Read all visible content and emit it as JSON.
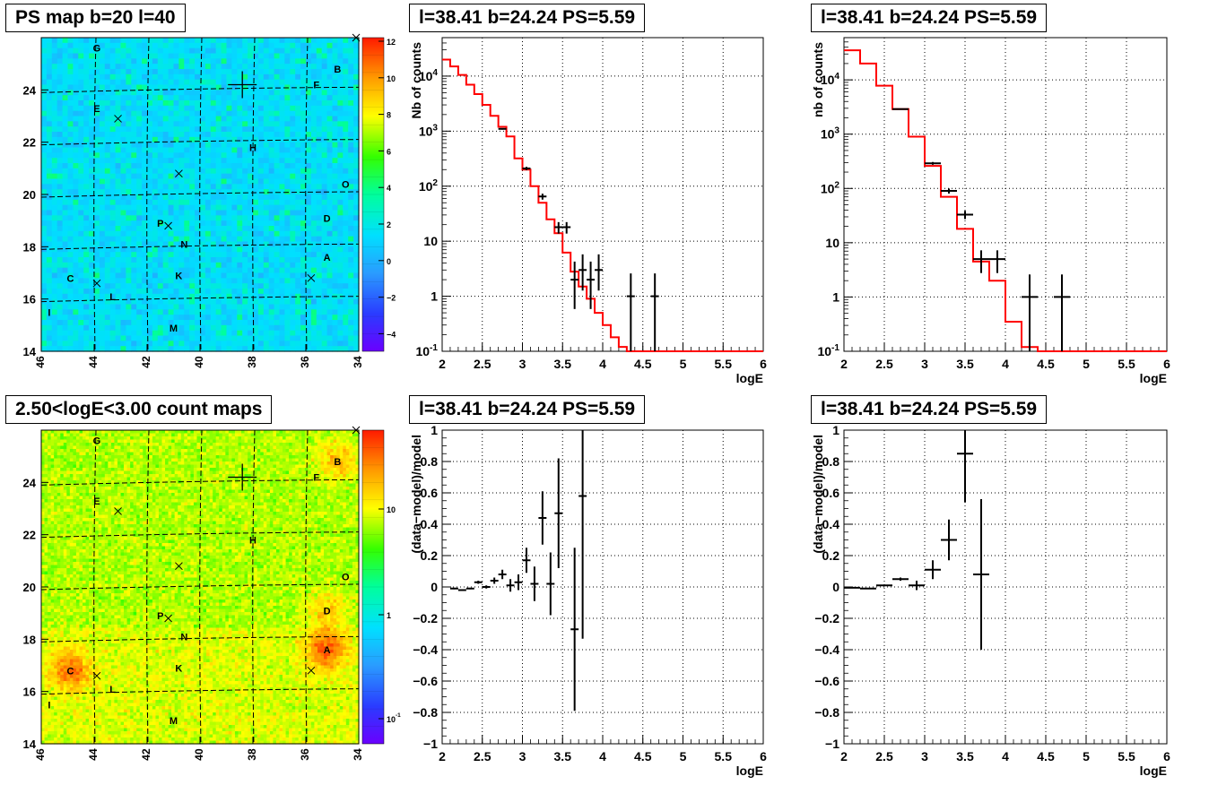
{
  "panels": {
    "tl_title": "PS map b=20 l=40",
    "tr1_title": "l=38.41 b=24.24 PS=5.59",
    "tr2_title": "l=38.41 b=24.24 PS=5.59",
    "bl_title": "2.50<logE<3.00 count maps",
    "br1_title": "l=38.41 b=24.24 PS=5.59",
    "br2_title": "l=38.41 b=24.24 PS=5.59"
  },
  "colors": {
    "model_line": "#ff0000",
    "data": "#000000",
    "grid": "#000000"
  },
  "chart_data": [
    {
      "type": "heatmap",
      "title": "PS map b=20 l=40",
      "x_ticks": [
        "46",
        "44",
        "42",
        "40",
        "38",
        "36",
        "34"
      ],
      "y_ticks": [
        "14",
        "16",
        "18",
        "20",
        "22",
        "24"
      ],
      "colorbar_ticks": [
        "12",
        "10",
        "8",
        "6",
        "4",
        "2",
        "0",
        "-2",
        "-4"
      ],
      "sources": [
        {
          "label": "G",
          "l": 43.9,
          "b": 25.6
        },
        {
          "label": "B",
          "l": 34.8,
          "b": 24.8
        },
        {
          "label": "F",
          "l": 35.6,
          "b": 24.2
        },
        {
          "label": "E",
          "l": 43.9,
          "b": 23.3
        },
        {
          "label": "H",
          "l": 38.0,
          "b": 21.8
        },
        {
          "label": "O",
          "l": 34.5,
          "b": 20.4
        },
        {
          "label": "D",
          "l": 35.2,
          "b": 19.1
        },
        {
          "label": "P",
          "l": 41.5,
          "b": 18.9
        },
        {
          "label": "N",
          "l": 40.6,
          "b": 18.1
        },
        {
          "label": "A",
          "l": 35.2,
          "b": 17.6
        },
        {
          "label": "C",
          "l": 44.9,
          "b": 16.8
        },
        {
          "label": "K",
          "l": 40.8,
          "b": 16.9
        },
        {
          "label": "L",
          "l": 43.3,
          "b": 16.1
        },
        {
          "label": "I",
          "l": 45.7,
          "b": 15.5
        },
        {
          "label": "M",
          "l": 41.0,
          "b": 14.9
        }
      ],
      "crosses": [
        {
          "l": 34.1,
          "b": 26.0
        },
        {
          "l": 43.1,
          "b": 22.9
        },
        {
          "l": 40.8,
          "b": 20.8
        },
        {
          "l": 41.2,
          "b": 18.8
        },
        {
          "l": 35.8,
          "b": 16.8
        },
        {
          "l": 43.9,
          "b": 16.6
        }
      ],
      "big_cross": {
        "l": 38.4,
        "b": 24.2
      }
    },
    {
      "type": "line",
      "title": "l=38.41 b=24.24 PS=5.59",
      "xlabel": "logE",
      "ylabel": "Nb of counts",
      "xlim": [
        2,
        6
      ],
      "ylim": [
        0.1,
        50000
      ],
      "yscale": "log",
      "x_ticks": [
        "2",
        "2.5",
        "3",
        "3.5",
        "4",
        "4.5",
        "5",
        "5.5",
        "6"
      ],
      "y_ticks": [
        "10^-1",
        "1",
        "10",
        "10^2",
        "10^3",
        "10^4"
      ],
      "model": {
        "edges": [
          2.0,
          2.1,
          2.2,
          2.3,
          2.4,
          2.5,
          2.6,
          2.7,
          2.8,
          2.9,
          3.0,
          3.1,
          3.2,
          3.3,
          3.4,
          3.5,
          3.6,
          3.7,
          3.8,
          3.9,
          4.0,
          4.1,
          4.2,
          4.3,
          6.0
        ],
        "values": [
          20000,
          15000,
          10500,
          7000,
          4700,
          3000,
          1900,
          1200,
          800,
          320,
          200,
          100,
          50,
          25,
          14,
          6.2,
          2.8,
          1.5,
          0.9,
          0.5,
          0.3,
          0.18,
          0.12,
          0.1
        ]
      },
      "data_points": [
        {
          "x": 2.75,
          "y": 1100,
          "xerr": 0.05
        },
        {
          "x": 3.05,
          "y": 210,
          "xerr": 0.05
        },
        {
          "x": 3.25,
          "y": 65,
          "xerr": 0.05
        },
        {
          "x": 3.45,
          "y": 18,
          "xerr": 0.05
        },
        {
          "x": 3.55,
          "y": 18,
          "xerr": 0.05
        },
        {
          "x": 3.65,
          "y": 2,
          "xerr": 0.05
        },
        {
          "x": 3.75,
          "y": 3,
          "xerr": 0.05
        },
        {
          "x": 3.85,
          "y": 2,
          "xerr": 0.05
        },
        {
          "x": 3.95,
          "y": 3,
          "xerr": 0.05
        },
        {
          "x": 4.35,
          "y": 1,
          "xerr": 0.05
        },
        {
          "x": 4.65,
          "y": 1,
          "xerr": 0.05
        }
      ]
    },
    {
      "type": "line",
      "title": "l=38.41 b=24.24 PS=5.59",
      "xlabel": "logE",
      "ylabel": "nb of counts",
      "xlim": [
        2,
        6
      ],
      "ylim": [
        0.1,
        60000
      ],
      "yscale": "log",
      "x_ticks": [
        "2",
        "2.5",
        "3",
        "3.5",
        "4",
        "4.5",
        "5",
        "5.5",
        "6"
      ],
      "y_ticks": [
        "10^-1",
        "1",
        "10",
        "10^2",
        "10^3",
        "10^4"
      ],
      "model": {
        "edges": [
          2.0,
          2.2,
          2.4,
          2.6,
          2.8,
          3.0,
          3.2,
          3.4,
          3.6,
          3.8,
          4.0,
          4.2,
          4.4,
          6.0
        ],
        "values": [
          35000,
          20000,
          7800,
          2900,
          900,
          260,
          70,
          18,
          4.5,
          2,
          0.35,
          0.12,
          0.1
        ]
      },
      "data_points": [
        {
          "x": 2.7,
          "y": 2900,
          "xerr": 0.1
        },
        {
          "x": 3.1,
          "y": 290,
          "xerr": 0.1
        },
        {
          "x": 3.3,
          "y": 90,
          "xerr": 0.1
        },
        {
          "x": 3.5,
          "y": 33,
          "xerr": 0.1
        },
        {
          "x": 3.7,
          "y": 5,
          "xerr": 0.1
        },
        {
          "x": 3.9,
          "y": 5,
          "xerr": 0.1
        },
        {
          "x": 4.3,
          "y": 1,
          "xerr": 0.1
        },
        {
          "x": 4.7,
          "y": 1,
          "xerr": 0.1
        }
      ]
    },
    {
      "type": "heatmap",
      "title": "2.50<logE<3.00 count maps",
      "x_ticks": [
        "46",
        "44",
        "42",
        "40",
        "38",
        "36",
        "34"
      ],
      "y_ticks": [
        "14",
        "16",
        "18",
        "20",
        "22",
        "24"
      ],
      "colorbar_ticks": [
        "10",
        "1",
        "10^-1"
      ],
      "hotspots": [
        {
          "label": "A",
          "l": 35.2,
          "b": 17.6,
          "strength": 1.0
        },
        {
          "label": "C",
          "l": 44.9,
          "b": 16.8,
          "strength": 0.9
        },
        {
          "label": "B",
          "l": 34.8,
          "b": 24.8,
          "strength": 0.6
        },
        {
          "label": "D",
          "l": 35.2,
          "b": 19.1,
          "strength": 0.5
        }
      ]
    },
    {
      "type": "scatter",
      "title": "l=38.41 b=24.24 PS=5.59",
      "xlabel": "logE",
      "ylabel": "(data-model)/model",
      "xlim": [
        2,
        6
      ],
      "ylim": [
        -1,
        1
      ],
      "x_ticks": [
        "2",
        "2.5",
        "3",
        "3.5",
        "4",
        "4.5",
        "5",
        "5.5",
        "6"
      ],
      "y_ticks": [
        "-1",
        "-0.8",
        "-0.6",
        "-0.4",
        "-0.2",
        "0",
        "0.2",
        "0.4",
        "0.6",
        "0.8",
        "1"
      ],
      "data_points": [
        {
          "x": 2.15,
          "y": -0.01,
          "xerr": 0.05,
          "yerr": 0.005
        },
        {
          "x": 2.25,
          "y": -0.02,
          "xerr": 0.05,
          "yerr": 0.005
        },
        {
          "x": 2.35,
          "y": -0.01,
          "xerr": 0.05,
          "yerr": 0.005
        },
        {
          "x": 2.45,
          "y": 0.03,
          "xerr": 0.05,
          "yerr": 0.01
        },
        {
          "x": 2.55,
          "y": 0.0,
          "xerr": 0.05,
          "yerr": 0.01
        },
        {
          "x": 2.65,
          "y": 0.04,
          "xerr": 0.05,
          "yerr": 0.02
        },
        {
          "x": 2.75,
          "y": 0.08,
          "xerr": 0.05,
          "yerr": 0.03
        },
        {
          "x": 2.85,
          "y": 0.01,
          "xerr": 0.05,
          "yerr": 0.04
        },
        {
          "x": 2.95,
          "y": 0.03,
          "xerr": 0.05,
          "yerr": 0.05
        },
        {
          "x": 3.05,
          "y": 0.17,
          "xerr": 0.05,
          "yerr": 0.08
        },
        {
          "x": 3.15,
          "y": 0.02,
          "xerr": 0.05,
          "yerr": 0.11
        },
        {
          "x": 3.25,
          "y": 0.44,
          "xerr": 0.05,
          "yerr": 0.17
        },
        {
          "x": 3.35,
          "y": 0.02,
          "xerr": 0.05,
          "yerr": 0.2
        },
        {
          "x": 3.45,
          "y": 0.47,
          "xerr": 0.05,
          "yerr": 0.35
        },
        {
          "x": 3.65,
          "y": -0.27,
          "xerr": 0.05,
          "yerr": 0.52
        },
        {
          "x": 3.75,
          "y": 0.58,
          "xerr": 0.05,
          "yerr": 0.91
        }
      ]
    },
    {
      "type": "scatter",
      "title": "l=38.41 b=24.24 PS=5.59",
      "xlabel": "logE",
      "ylabel": "(data-model)/model",
      "xlim": [
        2,
        6
      ],
      "ylim": [
        -1,
        1
      ],
      "x_ticks": [
        "2",
        "2.5",
        "3",
        "3.5",
        "4",
        "4.5",
        "5",
        "5.5",
        "6"
      ],
      "y_ticks": [
        "-1",
        "-0.8",
        "-0.6",
        "-0.4",
        "-0.2",
        "0",
        "0.2",
        "0.4",
        "0.6",
        "0.8",
        "1"
      ],
      "data_points": [
        {
          "x": 2.1,
          "y": -0.005,
          "xerr": 0.1,
          "yerr": 0.003
        },
        {
          "x": 2.3,
          "y": -0.01,
          "xerr": 0.1,
          "yerr": 0.003
        },
        {
          "x": 2.5,
          "y": 0.01,
          "xerr": 0.1,
          "yerr": 0.005
        },
        {
          "x": 2.7,
          "y": 0.05,
          "xerr": 0.1,
          "yerr": 0.01
        },
        {
          "x": 2.9,
          "y": 0.01,
          "xerr": 0.1,
          "yerr": 0.03
        },
        {
          "x": 3.1,
          "y": 0.11,
          "xerr": 0.1,
          "yerr": 0.06
        },
        {
          "x": 3.3,
          "y": 0.3,
          "xerr": 0.1,
          "yerr": 0.13
        },
        {
          "x": 3.5,
          "y": 0.85,
          "xerr": 0.1,
          "yerr": 0.31
        },
        {
          "x": 3.7,
          "y": 0.08,
          "xerr": 0.1,
          "yerr": 0.48
        }
      ]
    }
  ]
}
